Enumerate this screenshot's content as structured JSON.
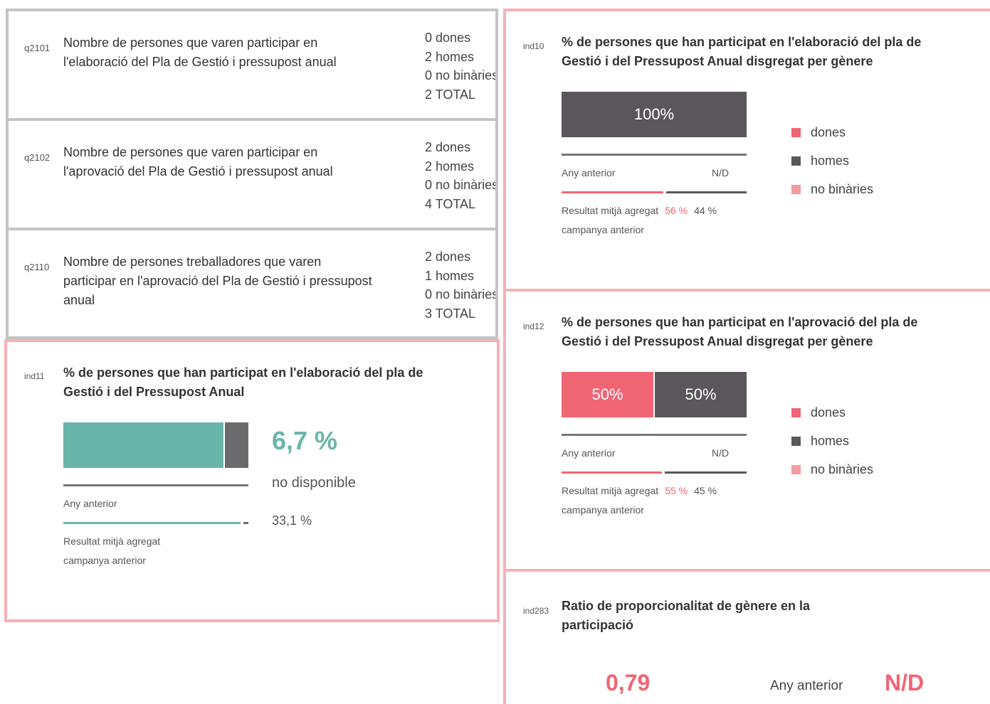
{
  "questions": [
    {
      "code": "q2101",
      "text": "Nombre de persones que varen participar en l'elaboració del Pla de Gestió i pressupost anual",
      "counts": [
        {
          "value": 0,
          "label": "dones"
        },
        {
          "value": 2,
          "label": "homes"
        },
        {
          "value": 0,
          "label": "no binàries"
        },
        {
          "value": 2,
          "label": "TOTAL"
        }
      ]
    },
    {
      "code": "q2102",
      "text": "Nombre de persones que varen participar en l'aprovació del Pla de Gestió i pressupost anual",
      "counts": [
        {
          "value": 2,
          "label": "dones"
        },
        {
          "value": 2,
          "label": "homes"
        },
        {
          "value": 0,
          "label": "no binàries"
        },
        {
          "value": 4,
          "label": "TOTAL"
        }
      ]
    },
    {
      "code": "q2110",
      "text": "Nombre de persones treballadores que varen participar en l'aprovació del Pla de Gestió i pressupost anual",
      "counts": [
        {
          "value": 2,
          "label": "dones"
        },
        {
          "value": 1,
          "label": "homes"
        },
        {
          "value": 0,
          "label": "no binàries"
        },
        {
          "value": 3,
          "label": "TOTAL"
        }
      ]
    }
  ],
  "ind11": {
    "code": "ind11",
    "title": "% de persones que han participat en l'elaboració del pla de Gestió i del Pressupost Anual",
    "bar": {
      "value": 6.7,
      "label": "6,7 %",
      "color": "#6ab5aa"
    },
    "status": "no disponible",
    "previous_label": "Any anterior",
    "average_line1": "Resultat mitjà agregat",
    "average_line2": "campanya anterior",
    "average": {
      "value": 33.1,
      "label": "33,1 %"
    }
  },
  "ind10": {
    "code": "ind10",
    "title": "% de persones que han participat en l'elaboració del pla de Gestió i del Pressupost Anual disgregat per gènere",
    "segments": [
      {
        "value": 100,
        "label": "100%",
        "color": "#5b565b"
      }
    ],
    "previous_label": "Any anterior",
    "previous_value": "N/D",
    "average_line1": "Resultat mitjà agregat",
    "average_line2": "campanya anterior",
    "average": [
      {
        "value": 56,
        "label": "56 %",
        "color": "#f06574"
      },
      {
        "value": 44,
        "label": "44 %",
        "color": "#5b565b"
      }
    ]
  },
  "ind12": {
    "code": "ind12",
    "title": "% de persones que han participat en l'aprovació del pla de Gestió i del Pressupost Anual disgregat per gènere",
    "segments": [
      {
        "value": 50,
        "label": "50%",
        "color": "#f06574"
      },
      {
        "value": 50,
        "label": "50%",
        "color": "#5b565b"
      }
    ],
    "previous_label": "Any anterior",
    "previous_value": "N/D",
    "average_line1": "Resultat mitjà agregat",
    "average_line2": "campanya anterior",
    "average": [
      {
        "value": 55,
        "label": "55 %",
        "color": "#f06574"
      },
      {
        "value": 45,
        "label": "45 %",
        "color": "#5b565b"
      }
    ]
  },
  "legend": [
    {
      "name": "dones",
      "color": "#f06574"
    },
    {
      "name": "homes",
      "color": "#5b565b"
    },
    {
      "name": "no binàries",
      "color": "#f59aa0"
    }
  ],
  "ind283": {
    "code": "ind283",
    "title": "Ratio de proporcionalitat de gènere en la participació",
    "value": "0,79",
    "previous_label": "Any anterior",
    "previous_value": "N/D"
  }
}
